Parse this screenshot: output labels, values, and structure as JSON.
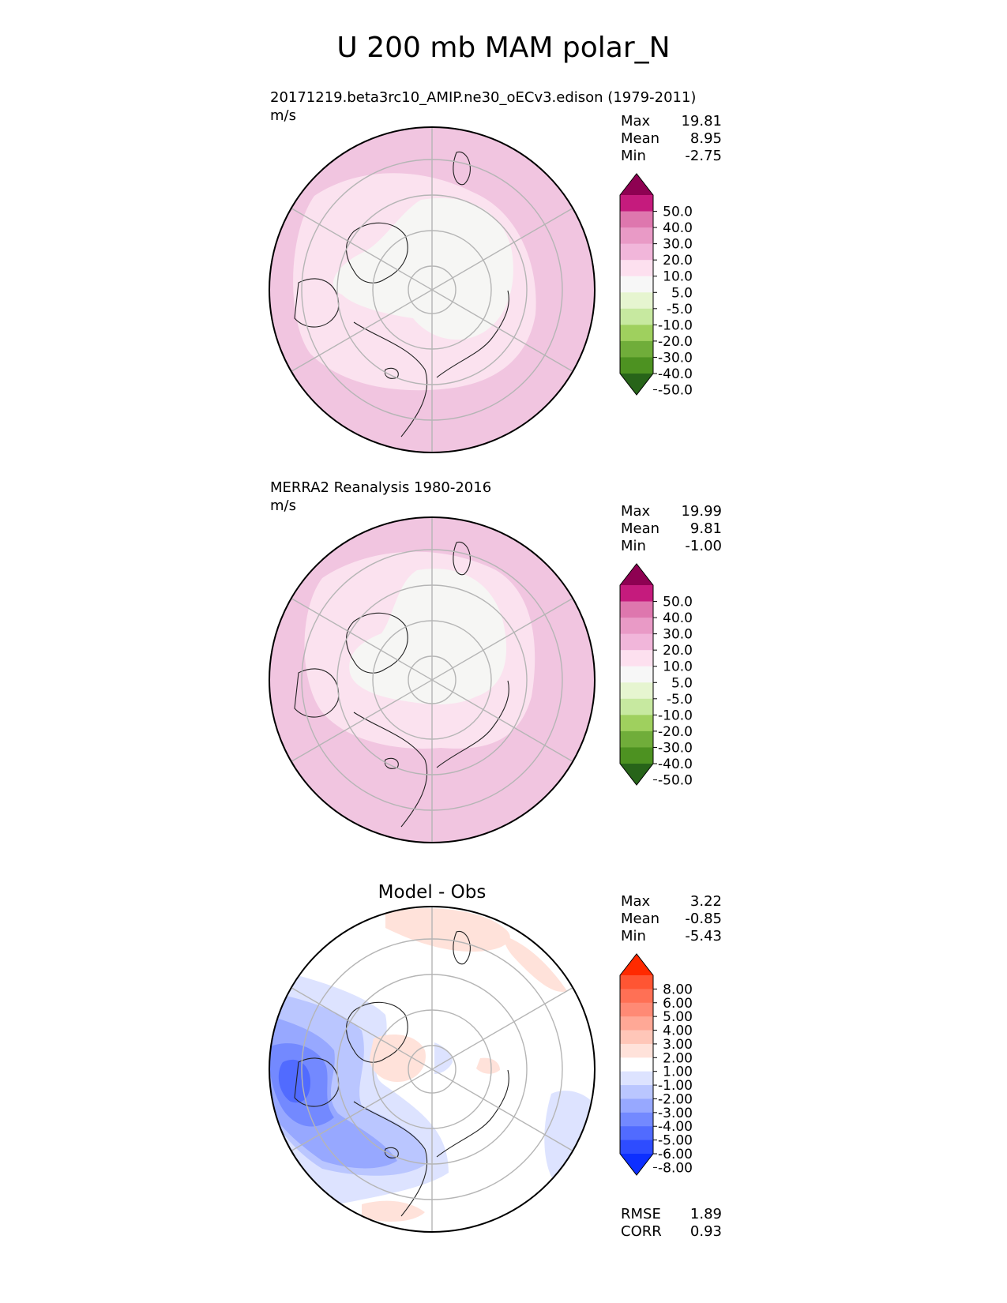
{
  "title": "U 200 mb MAM polar_N",
  "panels": [
    {
      "id": "model",
      "title": "20171219.beta3rc10_AMIP.ne30_oECv3.edison (1979-2011)",
      "units": "m/s",
      "stats": [
        {
          "label": "Max",
          "value": "19.81"
        },
        {
          "label": "Mean",
          "value": "8.95"
        },
        {
          "label": "Min",
          "value": "-2.75"
        }
      ]
    },
    {
      "id": "obs",
      "title": "MERRA2 Reanalysis 1980-2016",
      "units": "m/s",
      "stats": [
        {
          "label": "Max",
          "value": "19.99"
        },
        {
          "label": "Mean",
          "value": "9.81"
        },
        {
          "label": "Min",
          "value": "-1.00"
        }
      ]
    },
    {
      "id": "diff",
      "title": "Model - Obs",
      "stats": [
        {
          "label": "Max",
          "value": "3.22"
        },
        {
          "label": "Mean",
          "value": "-0.85"
        },
        {
          "label": "Min",
          "value": "-5.43"
        }
      ],
      "metrics": [
        {
          "label": "RMSE",
          "value": "1.89"
        },
        {
          "label": "CORR",
          "value": "0.93"
        }
      ]
    }
  ],
  "colorbars": {
    "field": {
      "ticks": [
        "50.0",
        "40.0",
        "30.0",
        "20.0",
        "10.0",
        "5.0",
        "-5.0",
        "-10.0",
        "-20.0",
        "-30.0",
        "-40.0",
        "-50.0"
      ],
      "colors": [
        "#8e0152",
        "#c51b7d",
        "#de77ae",
        "#e99ac6",
        "#f1b6da",
        "#fde0ef",
        "#f7f7f7",
        "#e6f5d0",
        "#c7e9a0",
        "#9fd05e",
        "#70ad3a",
        "#4d9221",
        "#276419"
      ]
    },
    "diff": {
      "ticks": [
        "8.00",
        "6.00",
        "5.00",
        "4.00",
        "3.00",
        "2.00",
        "1.00",
        "-1.00",
        "-2.00",
        "-3.00",
        "-4.00",
        "-5.00",
        "-6.00",
        "-8.00"
      ],
      "colors": [
        "#ff2a00",
        "#ff5533",
        "#ff7055",
        "#ff8a75",
        "#ffa896",
        "#ffc6b8",
        "#ffe2da",
        "#ffffff",
        "#dde3ff",
        "#bac6ff",
        "#97a8ff",
        "#7389ff",
        "#516bff",
        "#2e4cff",
        "#0d2fff"
      ]
    }
  }
}
